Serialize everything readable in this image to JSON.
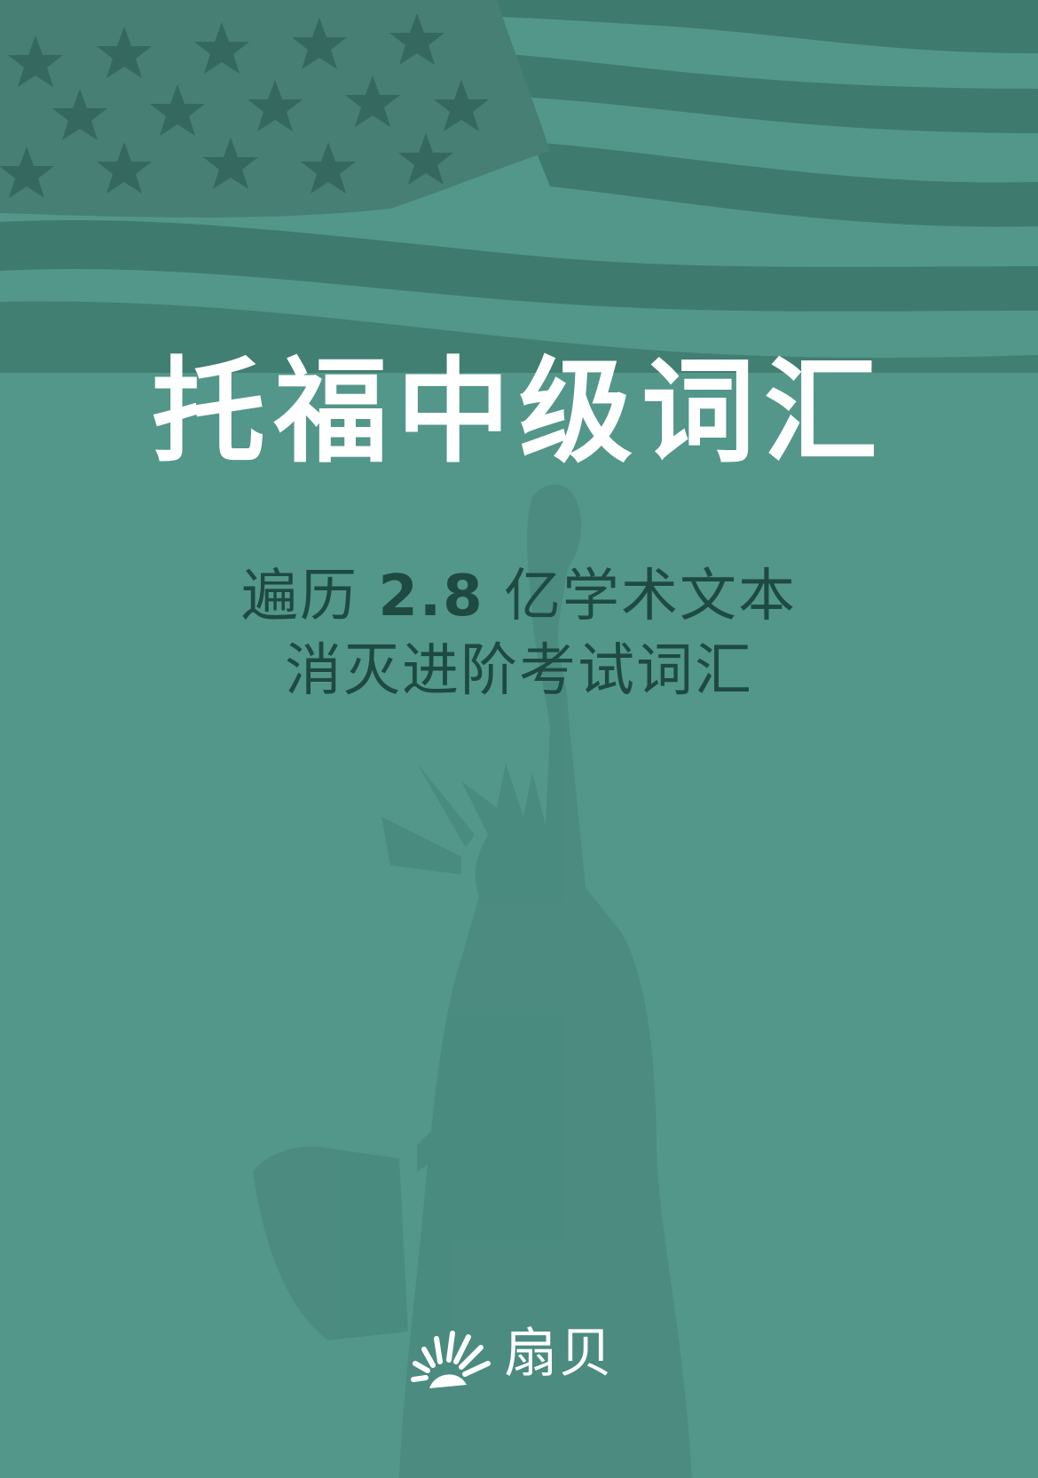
{
  "cover": {
    "title": "托福中级词汇",
    "subtitle": {
      "line1_pre": "遍历 ",
      "line1_number": "2.8",
      "line1_post": " 亿学术文本",
      "line2": "消灭进阶考试词汇"
    },
    "brand": {
      "name": "扇贝",
      "logo_icon": "shell-rays-icon"
    },
    "background_art": {
      "flag": "american-flag-icon",
      "statue": "statue-of-liberty-icon"
    },
    "colors": {
      "background": "#52978a",
      "flag_dark": "#3f7a6f",
      "flag_light": "#5aa093",
      "statue": "#4a8a7e",
      "title": "#ffffff",
      "subtitle": "#1e4a42"
    }
  }
}
